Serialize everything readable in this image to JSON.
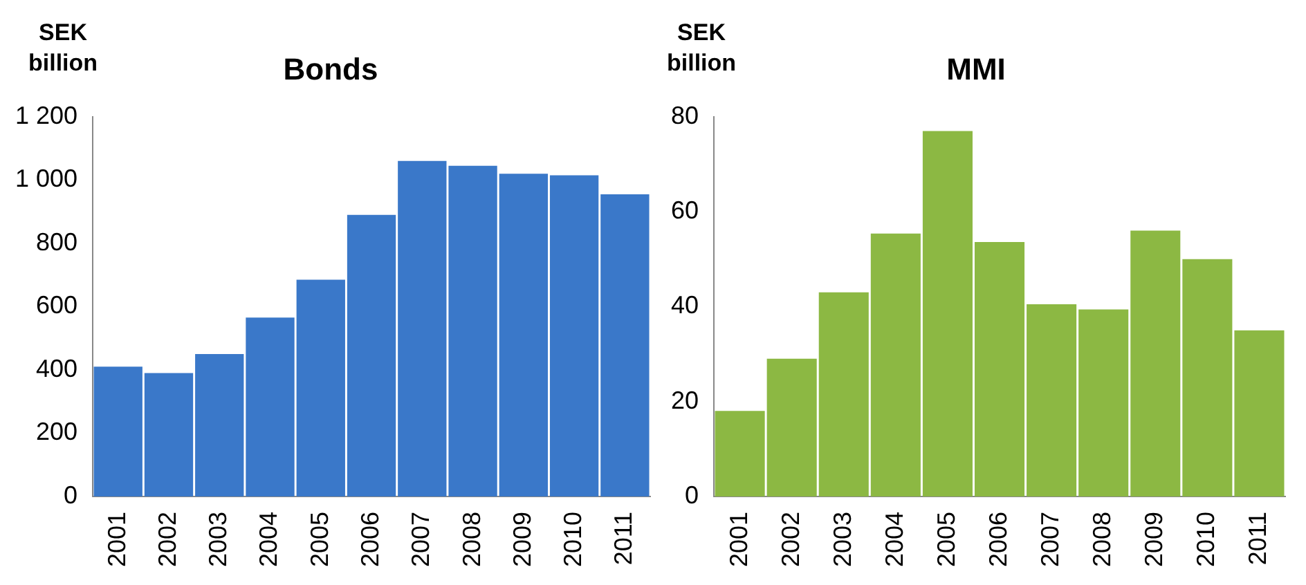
{
  "chart_data": [
    {
      "type": "bar",
      "title": "Bonds",
      "ylabel": "SEK billion",
      "categories": [
        "2001",
        "2002",
        "2003",
        "2004",
        "2005",
        "2006",
        "2007",
        "2008",
        "2009",
        "2010",
        "2011"
      ],
      "values": [
        410,
        390,
        450,
        565,
        685,
        890,
        1060,
        1045,
        1020,
        1015,
        955
      ],
      "color": "#3a78c9",
      "ylim": [
        0,
        1200
      ],
      "yticks": [
        {
          "value": 0,
          "label": "0"
        },
        {
          "value": 200,
          "label": "200"
        },
        {
          "value": 400,
          "label": "400"
        },
        {
          "value": 600,
          "label": "600"
        },
        {
          "value": 800,
          "label": "800"
        },
        {
          "value": 1000,
          "label": "1 000"
        },
        {
          "value": 1200,
          "label": "1 200"
        }
      ],
      "grid": false
    },
    {
      "type": "bar",
      "title": "MMI",
      "ylabel": "SEK billion",
      "categories": [
        "2001",
        "2002",
        "2003",
        "2004",
        "2005",
        "2006",
        "2007",
        "2008",
        "2009",
        "2010",
        "2011"
      ],
      "values": [
        18,
        29,
        43,
        55.4,
        77,
        53.6,
        40.5,
        39.4,
        56,
        50,
        35
      ],
      "color": "#8cb843",
      "ylim": [
        0,
        80
      ],
      "yticks": [
        0,
        20,
        40,
        60,
        80
      ],
      "grid": false
    }
  ]
}
